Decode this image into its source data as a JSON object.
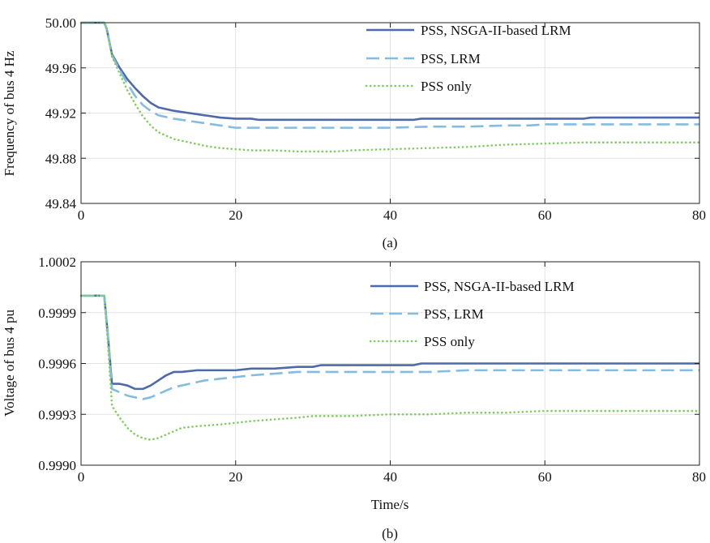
{
  "chart_data": [
    {
      "type": "line",
      "panel_label": "(a)",
      "xlabel": "",
      "ylabel": "Frequency of bus 4 Hz",
      "xlim": [
        0,
        80
      ],
      "ylim": [
        49.84,
        50.0
      ],
      "xticks": [
        0,
        20,
        40,
        60,
        80
      ],
      "xtick_labels": [
        "0",
        "20",
        "40",
        "60",
        "80"
      ],
      "yticks": [
        49.84,
        49.88,
        49.92,
        49.96,
        50.0
      ],
      "ytick_labels": [
        "49.84",
        "49.88",
        "49.92",
        "49.96",
        "50.00"
      ],
      "grid": true,
      "legend_position": "top-right",
      "series": [
        {
          "name": "PSS, NSGA-II-based LRM",
          "color": "#4e6aa8",
          "style": "solid",
          "x": [
            0,
            3,
            3.3,
            4,
            5,
            6,
            7,
            8,
            9,
            10,
            12,
            14,
            16,
            18,
            20,
            22,
            23,
            25,
            30,
            35,
            40,
            43,
            44,
            50,
            55,
            60,
            65,
            66,
            70,
            75,
            80
          ],
          "y": [
            50.0,
            50.0,
            49.995,
            49.972,
            49.96,
            49.95,
            49.942,
            49.935,
            49.929,
            49.925,
            49.922,
            49.92,
            49.918,
            49.916,
            49.915,
            49.915,
            49.914,
            49.914,
            49.914,
            49.914,
            49.914,
            49.914,
            49.915,
            49.915,
            49.915,
            49.915,
            49.915,
            49.916,
            49.916,
            49.916,
            49.916
          ]
        },
        {
          "name": "PSS, LRM",
          "color": "#82bde0",
          "style": "dashed",
          "x": [
            0,
            3,
            3.3,
            4,
            5,
            6,
            7,
            8,
            9,
            10,
            12,
            14,
            16,
            18,
            20,
            22,
            25,
            30,
            35,
            40,
            45,
            50,
            55,
            58,
            60,
            65,
            70,
            75,
            80
          ],
          "y": [
            50.0,
            50.0,
            49.995,
            49.971,
            49.958,
            49.946,
            49.935,
            49.927,
            49.922,
            49.918,
            49.915,
            49.913,
            49.911,
            49.909,
            49.907,
            49.907,
            49.907,
            49.907,
            49.907,
            49.907,
            49.908,
            49.908,
            49.909,
            49.909,
            49.91,
            49.91,
            49.91,
            49.91,
            49.91
          ]
        },
        {
          "name": "PSS only",
          "color": "#7fcc5f",
          "style": "dotted",
          "x": [
            0,
            3,
            3.3,
            4,
            5,
            6,
            7,
            8,
            9,
            10,
            12,
            14,
            16,
            18,
            20,
            22,
            25,
            28,
            30,
            33,
            35,
            40,
            45,
            50,
            55,
            60,
            65,
            70,
            75,
            80
          ],
          "y": [
            50.0,
            50.0,
            49.995,
            49.97,
            49.955,
            49.94,
            49.928,
            49.917,
            49.909,
            49.903,
            49.897,
            49.894,
            49.891,
            49.889,
            49.888,
            49.887,
            49.887,
            49.886,
            49.886,
            49.886,
            49.887,
            49.888,
            49.889,
            49.89,
            49.892,
            49.893,
            49.894,
            49.894,
            49.894,
            49.894
          ]
        }
      ]
    },
    {
      "type": "line",
      "panel_label": "(b)",
      "xlabel": "Time/s",
      "ylabel": "Voltage of bus 4 pu",
      "xlim": [
        0,
        80
      ],
      "ylim": [
        0.999,
        1.0002
      ],
      "xticks": [
        0,
        20,
        40,
        60,
        80
      ],
      "xtick_labels": [
        "0",
        "20",
        "40",
        "60",
        "80"
      ],
      "yticks": [
        0.999,
        0.9993,
        0.9996,
        0.9999,
        1.0002
      ],
      "ytick_labels": [
        "0.9990",
        "0.9993",
        "0.9996",
        "0.9999",
        "1.0002"
      ],
      "grid": true,
      "legend_position": "top-right",
      "series": [
        {
          "name": "PSS, NSGA-II-based LRM",
          "color": "#4e6aa8",
          "style": "solid",
          "x": [
            0,
            3,
            3.5,
            4,
            5,
            6,
            7,
            8,
            9,
            10,
            11,
            12,
            13,
            15,
            18,
            20,
            22,
            25,
            28,
            30,
            31,
            35,
            40,
            43,
            44,
            50,
            60,
            70,
            80
          ],
          "y": [
            1.0,
            1.0,
            0.99975,
            0.99948,
            0.99948,
            0.99947,
            0.99945,
            0.99945,
            0.99947,
            0.9995,
            0.99953,
            0.99955,
            0.99955,
            0.99956,
            0.99956,
            0.99956,
            0.99957,
            0.99957,
            0.99958,
            0.99958,
            0.99959,
            0.99959,
            0.99959,
            0.99959,
            0.9996,
            0.9996,
            0.9996,
            0.9996,
            0.9996
          ]
        },
        {
          "name": "PSS, LRM",
          "color": "#82bde0",
          "style": "dashed",
          "x": [
            0,
            3,
            3.5,
            4,
            5,
            6,
            7,
            8,
            9,
            10,
            11,
            12,
            14,
            16,
            18,
            20,
            22,
            25,
            28,
            30,
            35,
            40,
            45,
            50,
            60,
            70,
            80
          ],
          "y": [
            1.0,
            1.0,
            0.99975,
            0.99945,
            0.99943,
            0.99941,
            0.9994,
            0.99939,
            0.9994,
            0.99942,
            0.99944,
            0.99946,
            0.99948,
            0.9995,
            0.99951,
            0.99952,
            0.99953,
            0.99954,
            0.99955,
            0.99955,
            0.99955,
            0.99955,
            0.99955,
            0.99956,
            0.99956,
            0.99956,
            0.99956
          ]
        },
        {
          "name": "PSS only",
          "color": "#7fcc5f",
          "style": "dotted",
          "x": [
            0,
            3,
            3.5,
            4,
            5,
            6,
            7,
            8,
            9,
            10,
            11,
            12,
            13,
            15,
            18,
            20,
            22,
            25,
            28,
            30,
            35,
            40,
            45,
            50,
            55,
            60,
            70,
            80
          ],
          "y": [
            1.0,
            1.0,
            0.9997,
            0.99935,
            0.99928,
            0.99922,
            0.99918,
            0.99916,
            0.99915,
            0.99916,
            0.99918,
            0.9992,
            0.99922,
            0.99923,
            0.99924,
            0.99925,
            0.99926,
            0.99927,
            0.99928,
            0.99929,
            0.99929,
            0.9993,
            0.9993,
            0.99931,
            0.99931,
            0.99932,
            0.99932,
            0.99932
          ]
        }
      ]
    }
  ]
}
